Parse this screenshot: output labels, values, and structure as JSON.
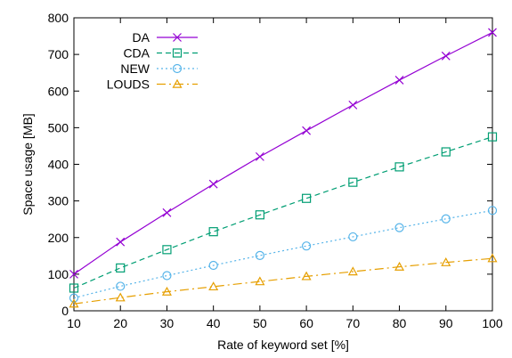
{
  "chart_data": {
    "type": "line",
    "title": "",
    "xlabel": "Rate of keyword set [%]",
    "ylabel": "Space usage [MB]",
    "xlim": [
      10,
      100
    ],
    "ylim": [
      0,
      800
    ],
    "x": [
      10,
      20,
      30,
      40,
      50,
      60,
      70,
      80,
      90,
      100
    ],
    "xticks": [
      "10",
      "20",
      "30",
      "40",
      "50",
      "60",
      "70",
      "80",
      "90",
      "100"
    ],
    "yticks": [
      "0",
      "100",
      "200",
      "300",
      "400",
      "500",
      "600",
      "700",
      "800"
    ],
    "grid": false,
    "legend_position": "top-left",
    "series": [
      {
        "name": "DA",
        "color": "#9400d3",
        "marker": "x-cross",
        "dash": "solid",
        "values": [
          100,
          188,
          268,
          346,
          421,
          492,
          562,
          630,
          696,
          760
        ]
      },
      {
        "name": "CDA",
        "color": "#009e73",
        "marker": "square",
        "dash": "dashed",
        "values": [
          62,
          117,
          167,
          216,
          262,
          307,
          351,
          393,
          434,
          475
        ]
      },
      {
        "name": "NEW",
        "color": "#56b4e9",
        "marker": "circle",
        "dash": "dotted",
        "values": [
          35,
          67,
          96,
          124,
          151,
          177,
          202,
          227,
          251,
          274
        ]
      },
      {
        "name": "LOUDS",
        "color": "#e69f00",
        "marker": "triangle",
        "dash": "dash-dot",
        "values": [
          19,
          36,
          52,
          66,
          80,
          94,
          107,
          120,
          132,
          143
        ]
      }
    ]
  }
}
